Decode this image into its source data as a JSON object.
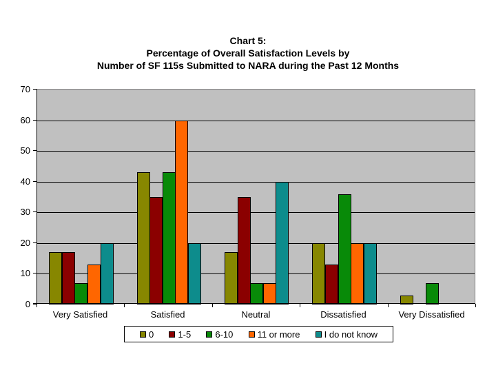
{
  "title": {
    "lines": [
      "Chart 5:",
      "Percentage of Overall Satisfaction Levels by",
      "Number of SF 115s Submitted to NARA during the Past 12 Months"
    ]
  },
  "chart_data": {
    "type": "bar",
    "title": "Chart 5: Percentage of Overall Satisfaction Levels by Number of SF 115s Submitted to NARA during the Past 12 Months",
    "categories": [
      "Very Satisfied",
      "Satisfied",
      "Neutral",
      "Dissatisfied",
      "Very Dissatisfied"
    ],
    "series": [
      {
        "name": "0",
        "color": "#878700",
        "values": [
          17,
          43,
          17,
          20,
          3
        ]
      },
      {
        "name": "1-5",
        "color": "#8B0000",
        "values": [
          17,
          35,
          35,
          13,
          0
        ]
      },
      {
        "name": "6-10",
        "color": "#088A08",
        "values": [
          7,
          43,
          7,
          36,
          7
        ]
      },
      {
        "name": "11 or more",
        "color": "#FF6600",
        "values": [
          13,
          60,
          7,
          20,
          0
        ]
      },
      {
        "name": "I do not know",
        "color": "#0D8C8C",
        "values": [
          20,
          20,
          40,
          20,
          0
        ]
      }
    ],
    "xlabel": "",
    "ylabel": "",
    "ylim": [
      0,
      70
    ],
    "yticks": [
      0,
      10,
      20,
      30,
      40,
      50,
      60,
      70
    ],
    "grid": true,
    "legend_position": "bottom",
    "plot_background": "#C0C0C0",
    "gridline_color": "#000000",
    "plot_border_color": "#848284"
  }
}
